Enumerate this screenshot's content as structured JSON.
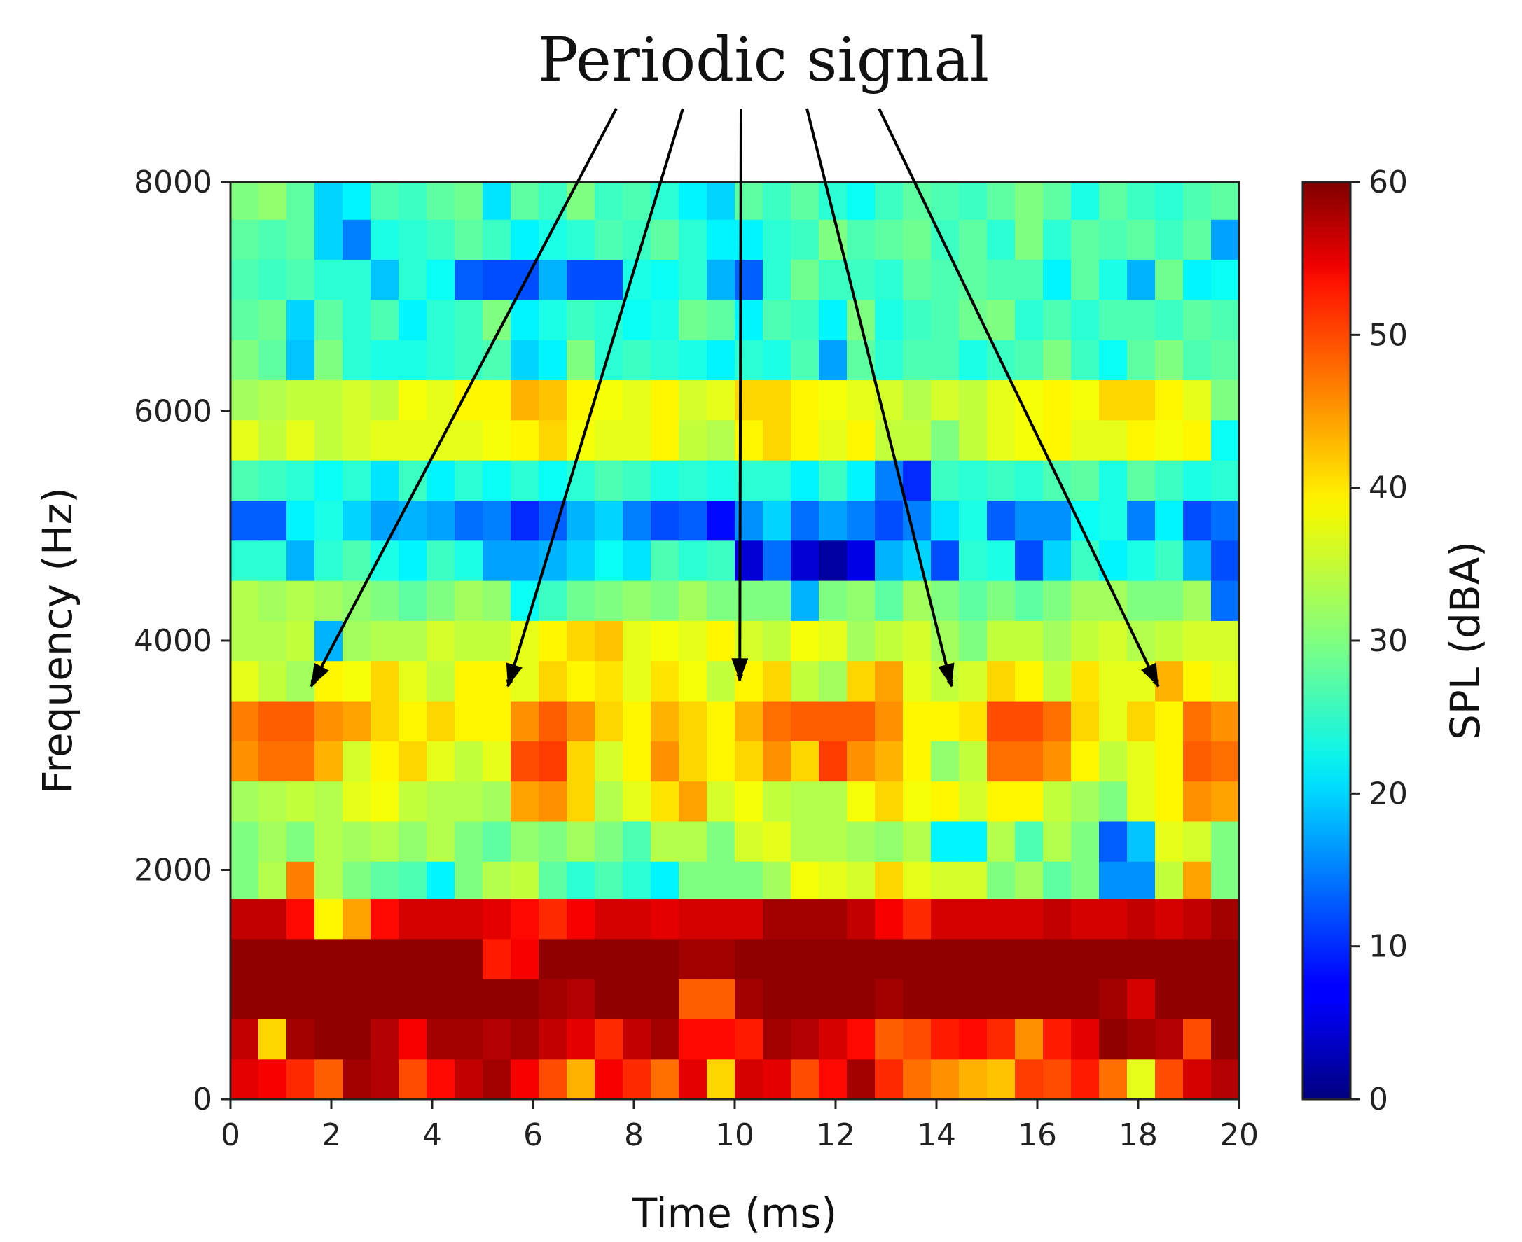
{
  "chart_data": {
    "type": "heatmap",
    "title": "",
    "annotation": "Periodic signal",
    "annotation_targets": [
      {
        "x": 1.6,
        "y": 3600
      },
      {
        "x": 5.5,
        "y": 3600
      },
      {
        "x": 10.1,
        "y": 3650
      },
      {
        "x": 14.3,
        "y": 3600
      },
      {
        "x": 18.4,
        "y": 3600
      }
    ],
    "xlabel": "Time (ms)",
    "ylabel": "Frequency (Hz)",
    "colorbar_label": "SPL (dBA)",
    "xlim": [
      0,
      20
    ],
    "ylim": [
      0,
      8000
    ],
    "clim": [
      0,
      60
    ],
    "xticks": [
      0,
      2,
      4,
      6,
      8,
      10,
      12,
      14,
      16,
      18,
      20
    ],
    "yticks": [
      0,
      2000,
      4000,
      6000,
      8000
    ],
    "cticks": [
      0,
      10,
      20,
      30,
      40,
      50,
      60
    ],
    "colormap": "jet",
    "n_time_bins": 36,
    "freq_bin_edges": [
      0,
      350,
      700,
      1050,
      1400,
      1750,
      2075,
      2425,
      2775,
      3125,
      3475,
      3825,
      4175,
      4525,
      4875,
      5225,
      5575,
      5925,
      6275,
      6625,
      6975,
      7325,
      7675,
      8000
    ],
    "row_values_low_to_high": [
      [
        54,
        53,
        50,
        47,
        58,
        57,
        48,
        52,
        56,
        58,
        53,
        48,
        42,
        53,
        50,
        46,
        54,
        40,
        55,
        54,
        48,
        52,
        58,
        50,
        46,
        44,
        42,
        41,
        49,
        48,
        51,
        46,
        36,
        48,
        55,
        57
      ],
      [
        56,
        40,
        58,
        59,
        59,
        57,
        53,
        58,
        58,
        57,
        58,
        56,
        54,
        50,
        56,
        58,
        52,
        52,
        51,
        58,
        57,
        55,
        52,
        47,
        48,
        51,
        52,
        50,
        44,
        51,
        54,
        59,
        58,
        57,
        48,
        59
      ],
      [
        59,
        59,
        59,
        59,
        59,
        59,
        59,
        59,
        59,
        59,
        59,
        58,
        57,
        59,
        59,
        59,
        47,
        47,
        58,
        59,
        59,
        59,
        59,
        58,
        59,
        59,
        59,
        59,
        59,
        59,
        59,
        58,
        55,
        59,
        59,
        59
      ],
      [
        59,
        59,
        59,
        59,
        59,
        59,
        59,
        59,
        59,
        51,
        53,
        59,
        59,
        59,
        59,
        59,
        58,
        58,
        59,
        59,
        59,
        59,
        59,
        59,
        59,
        59,
        59,
        59,
        59,
        59,
        59,
        59,
        59,
        59,
        59,
        59
      ],
      [
        56,
        56,
        52,
        38,
        43,
        52,
        55,
        55,
        55,
        54,
        52,
        50,
        53,
        55,
        55,
        54,
        55,
        55,
        55,
        58,
        58,
        58,
        56,
        53,
        50,
        55,
        55,
        55,
        55,
        56,
        55,
        55,
        56,
        55,
        56,
        58
      ],
      [
        30,
        33,
        45,
        33,
        30,
        28,
        27,
        22,
        30,
        33,
        34,
        28,
        25,
        27,
        25,
        22,
        30,
        30,
        30,
        32,
        37,
        36,
        35,
        40,
        36,
        35,
        35,
        30,
        32,
        28,
        30,
        16,
        16,
        34,
        43,
        30
      ],
      [
        30,
        32,
        30,
        33,
        32,
        33,
        31,
        33,
        30,
        28,
        31,
        30,
        32,
        30,
        27,
        33,
        33,
        30,
        35,
        36,
        33,
        33,
        32,
        31,
        33,
        22,
        22,
        33,
        27,
        33,
        30,
        13,
        19,
        36,
        35,
        30
      ],
      [
        32,
        33,
        34,
        33,
        36,
        37,
        34,
        33,
        33,
        32,
        43,
        44,
        40,
        33,
        36,
        39,
        43,
        35,
        37,
        34,
        33,
        33,
        37,
        40,
        37,
        38,
        35,
        38,
        38,
        34,
        32,
        30,
        36,
        38,
        44,
        43
      ],
      [
        44,
        46,
        46,
        42,
        35,
        38,
        40,
        36,
        34,
        36,
        48,
        49,
        40,
        35,
        38,
        44,
        40,
        38,
        40,
        44,
        40,
        49,
        44,
        42,
        38,
        31,
        34,
        46,
        46,
        44,
        38,
        34,
        36,
        38,
        47,
        46
      ],
      [
        45,
        47,
        47,
        44,
        43,
        40,
        38,
        40,
        38,
        38,
        44,
        47,
        44,
        40,
        38,
        42,
        40,
        38,
        42,
        46,
        47,
        47,
        47,
        44,
        38,
        38,
        39,
        48,
        48,
        46,
        40,
        36,
        40,
        38,
        46,
        44
      ],
      [
        36,
        34,
        32,
        38,
        37,
        40,
        36,
        34,
        38,
        38,
        36,
        40,
        38,
        39,
        36,
        39,
        37,
        34,
        38,
        40,
        34,
        32,
        40,
        43,
        36,
        34,
        35,
        40,
        38,
        34,
        39,
        36,
        36,
        42,
        38,
        36
      ],
      [
        33,
        33,
        34,
        18,
        32,
        33,
        33,
        35,
        34,
        34,
        36,
        38,
        40,
        41,
        36,
        37,
        36,
        38,
        35,
        34,
        37,
        36,
        32,
        34,
        35,
        32,
        30,
        34,
        34,
        32,
        34,
        35,
        33,
        34,
        35,
        35
      ],
      [
        33,
        32,
        33,
        32,
        31,
        30,
        28,
        30,
        32,
        31,
        23,
        26,
        29,
        30,
        31,
        30,
        32,
        30,
        30,
        30,
        18,
        30,
        31,
        28,
        32,
        30,
        28,
        30,
        28,
        30,
        32,
        32,
        30,
        30,
        32,
        14
      ],
      [
        25,
        25,
        18,
        25,
        27,
        24,
        22,
        26,
        24,
        17,
        17,
        18,
        20,
        23,
        21,
        27,
        25,
        26,
        5,
        14,
        5,
        2,
        6,
        18,
        20,
        12,
        25,
        24,
        12,
        20,
        26,
        22,
        24,
        26,
        18,
        12
      ],
      [
        13,
        13,
        22,
        24,
        20,
        17,
        18,
        17,
        14,
        15,
        10,
        13,
        18,
        20,
        15,
        12,
        13,
        8,
        16,
        20,
        14,
        17,
        15,
        12,
        15,
        21,
        24,
        13,
        16,
        16,
        23,
        24,
        15,
        22,
        12,
        14
      ],
      [
        27,
        26,
        25,
        23,
        25,
        21,
        26,
        22,
        25,
        23,
        25,
        23,
        25,
        27,
        26,
        24,
        25,
        24,
        25,
        25,
        22,
        26,
        22,
        15,
        10,
        26,
        25,
        26,
        25,
        27,
        28,
        24,
        28,
        26,
        24,
        25
      ],
      [
        36,
        34,
        36,
        34,
        35,
        36,
        36,
        36,
        36,
        37,
        38,
        40,
        37,
        36,
        36,
        38,
        34,
        33,
        38,
        40,
        38,
        36,
        38,
        34,
        34,
        30,
        34,
        36,
        37,
        38,
        36,
        36,
        38,
        37,
        38,
        23
      ],
      [
        32,
        33,
        34,
        34,
        35,
        34,
        37,
        36,
        38,
        38,
        42,
        41,
        38,
        37,
        36,
        38,
        35,
        36,
        40,
        40,
        38,
        37,
        36,
        35,
        33,
        35,
        34,
        36,
        37,
        38,
        37,
        40,
        40,
        38,
        36,
        30
      ],
      [
        30,
        28,
        19,
        30,
        25,
        24,
        24,
        25,
        26,
        27,
        20,
        22,
        30,
        25,
        26,
        25,
        24,
        22,
        25,
        24,
        27,
        17,
        28,
        25,
        27,
        27,
        24,
        26,
        27,
        30,
        26,
        23,
        28,
        30,
        27,
        28
      ],
      [
        28,
        29,
        20,
        28,
        25,
        27,
        22,
        25,
        26,
        30,
        22,
        24,
        26,
        25,
        23,
        24,
        29,
        28,
        22,
        27,
        26,
        22,
        30,
        24,
        26,
        27,
        29,
        30,
        25,
        27,
        25,
        27,
        27,
        26,
        28,
        27
      ],
      [
        27,
        26,
        27,
        25,
        25,
        19,
        25,
        23,
        13,
        12,
        12,
        18,
        12,
        12,
        24,
        23,
        25,
        18,
        13,
        25,
        29,
        26,
        26,
        25,
        28,
        27,
        28,
        27,
        27,
        22,
        28,
        24,
        18,
        29,
        22,
        23
      ],
      [
        28,
        27,
        28,
        20,
        15,
        24,
        25,
        26,
        28,
        26,
        22,
        24,
        25,
        27,
        26,
        28,
        25,
        22,
        22,
        25,
        26,
        30,
        27,
        28,
        29,
        26,
        28,
        25,
        30,
        25,
        28,
        27,
        28,
        26,
        28,
        17
      ],
      [
        30,
        31,
        28,
        20,
        22,
        27,
        26,
        28,
        29,
        21,
        28,
        26,
        30,
        26,
        27,
        25,
        22,
        20,
        28,
        26,
        28,
        25,
        23,
        26,
        28,
        27,
        26,
        28,
        30,
        28,
        24,
        28,
        26,
        25,
        27,
        28
      ]
    ]
  }
}
